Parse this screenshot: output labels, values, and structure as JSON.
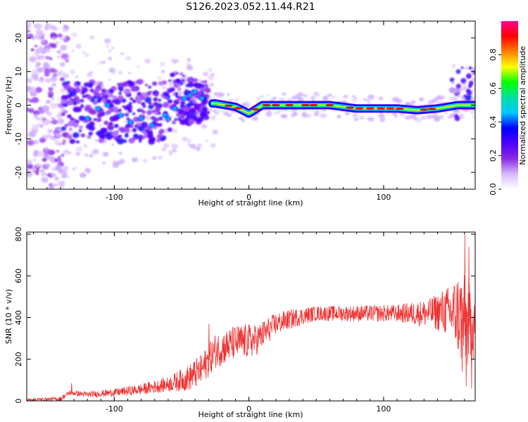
{
  "title": "S126.2023.052.11.44.R21",
  "chart_data": [
    {
      "type": "heatmap",
      "xlabel": "Height of straight line (km)",
      "ylabel": "Frequency (Hz)",
      "xlim": [
        -165,
        168
      ],
      "ylim": [
        -25,
        25
      ],
      "xticks": [
        -100,
        0,
        100
      ],
      "yticks": [
        -20,
        -10,
        0,
        10,
        20
      ],
      "colorbar": {
        "label": "Normalized spectral amplitude",
        "range": [
          0.0,
          1.0
        ],
        "ticks": [
          0.0,
          0.2,
          0.4,
          0.6,
          0.8
        ],
        "tick_labels": [
          "0.0",
          "0.2",
          "0.4",
          "0.6",
          "0.8"
        ],
        "colors": [
          "#ffffff",
          "#d8b8ff",
          "#8a2be2",
          "#4b00ff",
          "#0000ff",
          "#00c8ff",
          "#00e0a0",
          "#00ff00",
          "#ffff00",
          "#ff7f00",
          "#ff0000",
          "#ff0090"
        ]
      },
      "ridge": [
        {
          "x": -25,
          "y": 0.5
        },
        {
          "x": -10,
          "y": -0.5
        },
        {
          "x": 0,
          "y": -2.5
        },
        {
          "x": 10,
          "y": 0
        },
        {
          "x": 30,
          "y": 0
        },
        {
          "x": 60,
          "y": 0
        },
        {
          "x": 80,
          "y": -1
        },
        {
          "x": 110,
          "y": -1
        },
        {
          "x": 125,
          "y": -1.5
        },
        {
          "x": 140,
          "y": -1
        },
        {
          "x": 155,
          "y": 0
        },
        {
          "x": 165,
          "y": 0
        }
      ],
      "ridge_peak_color": "#ff0000"
    },
    {
      "type": "line",
      "xlabel": "Height of straight line (km)",
      "ylabel": "SNR (10 * v/v)",
      "xlim": [
        -165,
        168
      ],
      "ylim": [
        0,
        810
      ],
      "xticks": [
        -100,
        0,
        100
      ],
      "yticks": [
        0,
        200,
        400,
        600,
        800
      ],
      "line_color": "#ee3333",
      "trend": [
        {
          "x": -165,
          "y": 5
        },
        {
          "x": -140,
          "y": 10
        },
        {
          "x": -133,
          "y": 40
        },
        {
          "x": -120,
          "y": 30
        },
        {
          "x": -100,
          "y": 40
        },
        {
          "x": -80,
          "y": 55
        },
        {
          "x": -60,
          "y": 80
        },
        {
          "x": -45,
          "y": 110
        },
        {
          "x": -35,
          "y": 150
        },
        {
          "x": -25,
          "y": 240
        },
        {
          "x": -10,
          "y": 280
        },
        {
          "x": 5,
          "y": 290
        },
        {
          "x": 20,
          "y": 370
        },
        {
          "x": 35,
          "y": 400
        },
        {
          "x": 50,
          "y": 420
        },
        {
          "x": 80,
          "y": 420
        },
        {
          "x": 110,
          "y": 420
        },
        {
          "x": 130,
          "y": 420
        },
        {
          "x": 145,
          "y": 430
        },
        {
          "x": 155,
          "y": 420
        },
        {
          "x": 162,
          "y": 360
        },
        {
          "x": 168,
          "y": 380
        }
      ],
      "noise": [
        {
          "x": -165,
          "y": 5
        },
        {
          "x": -100,
          "y": 15
        },
        {
          "x": -60,
          "y": 30
        },
        {
          "x": -40,
          "y": 60
        },
        {
          "x": -25,
          "y": 70
        },
        {
          "x": 0,
          "y": 70
        },
        {
          "x": 20,
          "y": 45
        },
        {
          "x": 50,
          "y": 30
        },
        {
          "x": 110,
          "y": 35
        },
        {
          "x": 135,
          "y": 60
        },
        {
          "x": 150,
          "y": 110
        },
        {
          "x": 158,
          "y": 200
        },
        {
          "x": 168,
          "y": 150
        }
      ],
      "spikes": [
        {
          "x": -132,
          "y": 85
        },
        {
          "x": -30,
          "y": 370
        },
        {
          "x": 155,
          "y": 510
        },
        {
          "x": 160,
          "y": 800
        },
        {
          "x": 163,
          "y": 740
        },
        {
          "x": 161,
          "y": 70
        },
        {
          "x": 165,
          "y": 60
        },
        {
          "x": 158,
          "y": 140
        }
      ]
    }
  ]
}
